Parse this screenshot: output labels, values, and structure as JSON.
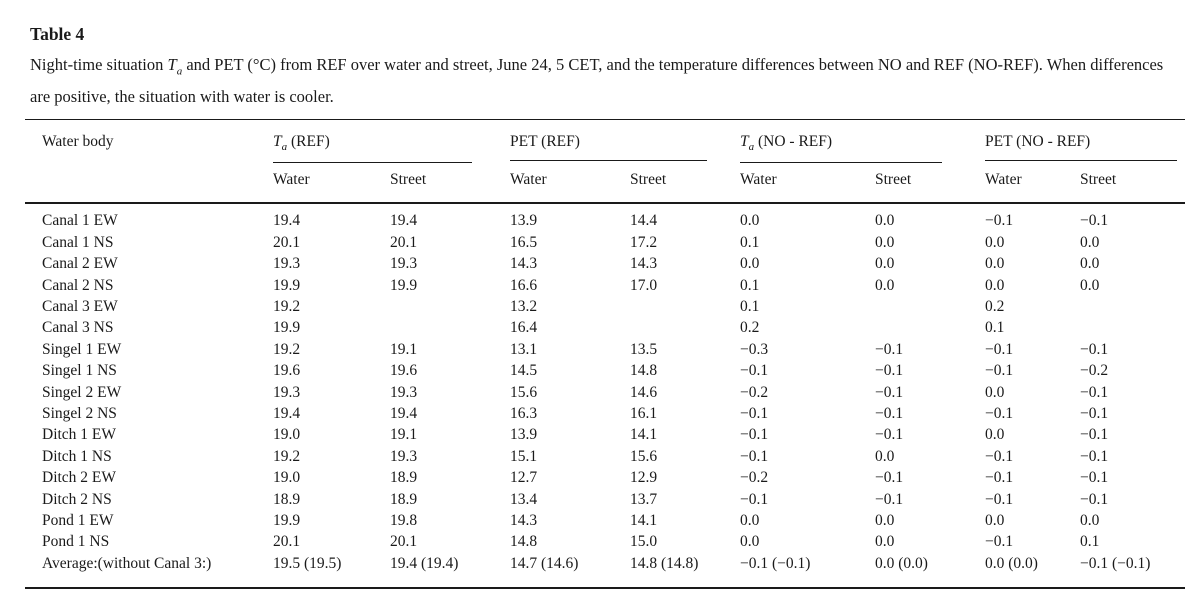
{
  "page": {
    "title": "Table 4",
    "caption": {
      "pre": "Night-time situation ",
      "var": "T",
      "var_sub": "a",
      "post": " and PET (°C) from REF over water and street, June 24, 5 CET, and the temperature differences between NO and REF (NO-REF). When differences are positive, the situation with water is cooler."
    }
  },
  "table": {
    "row_header": "Water body",
    "groups": [
      {
        "var": "T",
        "sub": "a",
        "rest": " (REF)"
      },
      {
        "label": "PET (REF)"
      },
      {
        "var": "T",
        "sub": "a",
        "rest": " (NO - REF)"
      },
      {
        "label": "PET (NO - REF)"
      }
    ],
    "subcols": {
      "water": "Water",
      "street": "Street"
    },
    "rows": [
      {
        "label": "Canal 1 EW",
        "v": [
          "19.4",
          "19.4",
          "13.9",
          "14.4",
          "0.0",
          "0.0",
          "−0.1",
          "−0.1"
        ]
      },
      {
        "label": "Canal 1 NS",
        "v": [
          "20.1",
          "20.1",
          "16.5",
          "17.2",
          "0.1",
          "0.0",
          "0.0",
          "0.0"
        ]
      },
      {
        "label": "Canal 2 EW",
        "v": [
          "19.3",
          "19.3",
          "14.3",
          "14.3",
          "0.0",
          "0.0",
          "0.0",
          "0.0"
        ]
      },
      {
        "label": "Canal 2 NS",
        "v": [
          "19.9",
          "19.9",
          "16.6",
          "17.0",
          "0.1",
          "0.0",
          "0.0",
          "0.0"
        ]
      },
      {
        "label": "Canal 3 EW",
        "v": [
          "19.2",
          "",
          "13.2",
          "",
          "0.1",
          "",
          "0.2",
          ""
        ]
      },
      {
        "label": "Canal 3 NS",
        "v": [
          "19.9",
          "",
          "16.4",
          "",
          "0.2",
          "",
          "0.1",
          ""
        ]
      },
      {
        "label": "Singel 1 EW",
        "v": [
          "19.2",
          "19.1",
          "13.1",
          "13.5",
          "−0.3",
          "−0.1",
          "−0.1",
          "−0.1"
        ]
      },
      {
        "label": "Singel 1 NS",
        "v": [
          "19.6",
          "19.6",
          "14.5",
          "14.8",
          "−0.1",
          "−0.1",
          "−0.1",
          "−0.2"
        ]
      },
      {
        "label": "Singel 2 EW",
        "v": [
          "19.3",
          "19.3",
          "15.6",
          "14.6",
          "−0.2",
          "−0.1",
          "0.0",
          "−0.1"
        ]
      },
      {
        "label": "Singel 2 NS",
        "v": [
          "19.4",
          "19.4",
          "16.3",
          "16.1",
          "−0.1",
          "−0.1",
          "−0.1",
          "−0.1"
        ]
      },
      {
        "label": "Ditch 1 EW",
        "v": [
          "19.0",
          "19.1",
          "13.9",
          "14.1",
          "−0.1",
          "−0.1",
          "0.0",
          "−0.1"
        ]
      },
      {
        "label": "Ditch 1 NS",
        "v": [
          "19.2",
          "19.3",
          "15.1",
          "15.6",
          "−0.1",
          "0.0",
          "−0.1",
          "−0.1"
        ]
      },
      {
        "label": "Ditch 2 EW",
        "v": [
          "19.0",
          "18.9",
          "12.7",
          "12.9",
          "−0.2",
          "−0.1",
          "−0.1",
          "−0.1"
        ]
      },
      {
        "label": "Ditch 2 NS",
        "v": [
          "18.9",
          "18.9",
          "13.4",
          "13.7",
          "−0.1",
          "−0.1",
          "−0.1",
          "−0.1"
        ]
      },
      {
        "label": "Pond 1 EW",
        "v": [
          "19.9",
          "19.8",
          "14.3",
          "14.1",
          "0.0",
          "0.0",
          "0.0",
          "0.0"
        ]
      },
      {
        "label": "Pond 1 NS",
        "v": [
          "20.1",
          "20.1",
          "14.8",
          "15.0",
          "0.0",
          "0.0",
          "−0.1",
          "0.1"
        ]
      },
      {
        "label": "Average:(without Canal 3:)",
        "v": [
          "19.5 (19.5)",
          "19.4 (19.4)",
          "14.7 (14.6)",
          "14.8 (14.8)",
          "−0.1 (−0.1)",
          "0.0 (0.0)",
          "0.0 (0.0)",
          "−0.1 (−0.1)"
        ]
      }
    ]
  }
}
